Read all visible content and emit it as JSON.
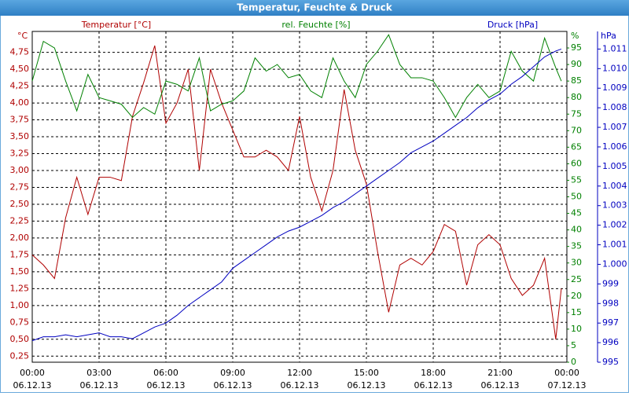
{
  "chart_data": {
    "type": "line",
    "title": "Temperatur, Feuchte & Druck",
    "y_label": "°C",
    "y2_label": "%",
    "y3_label": "hPa",
    "grid": true,
    "x": [
      0,
      0.5,
      1,
      1.5,
      2,
      2.5,
      3,
      3.5,
      4,
      4.5,
      5,
      5.5,
      6,
      6.5,
      7,
      7.5,
      8,
      8.5,
      9,
      9.5,
      10,
      10.5,
      11,
      11.5,
      12,
      12.5,
      13,
      13.5,
      14,
      14.5,
      15,
      15.5,
      16,
      16.5,
      17,
      17.5,
      18,
      18.5,
      19,
      19.5,
      20,
      20.5,
      21,
      21.5,
      22,
      22.5,
      23,
      23.5,
      23.75
    ],
    "xlim": [
      0,
      24
    ],
    "xticks": [
      {
        "value": 0,
        "label": "00:00"
      },
      {
        "value": 3,
        "label": "03:00"
      },
      {
        "value": 6,
        "label": "06:00"
      },
      {
        "value": 9,
        "label": "09:00"
      },
      {
        "value": 12,
        "label": "12:00"
      },
      {
        "value": 15,
        "label": "15:00"
      },
      {
        "value": 18,
        "label": "18:00"
      },
      {
        "value": 21,
        "label": "21:00"
      },
      {
        "value": 24,
        "label": "00:00"
      }
    ],
    "xtick_dates": [
      "06.12.13",
      "06.12.13",
      "06.12.13",
      "06.12.13",
      "06.12.13",
      "06.12.13",
      "06.12.13",
      "06.12.13",
      "07.12.13"
    ],
    "ylim": [
      0.16,
      5.06
    ],
    "yticks": [
      {
        "value": 0.25,
        "label": "0,25"
      },
      {
        "value": 0.5,
        "label": "0,50"
      },
      {
        "value": 0.75,
        "label": "0,75"
      },
      {
        "value": 1,
        "label": "1,00"
      },
      {
        "value": 1.25,
        "label": "1,25"
      },
      {
        "value": 1.5,
        "label": "1,50"
      },
      {
        "value": 1.75,
        "label": "1,75"
      },
      {
        "value": 2,
        "label": "2,00"
      },
      {
        "value": 2.25,
        "label": "2,25"
      },
      {
        "value": 2.5,
        "label": "2,50"
      },
      {
        "value": 2.75,
        "label": "2,75"
      },
      {
        "value": 3,
        "label": "3,00"
      },
      {
        "value": 3.25,
        "label": "3,25"
      },
      {
        "value": 3.5,
        "label": "3,50"
      },
      {
        "value": 3.75,
        "label": "3,75"
      },
      {
        "value": 4,
        "label": "4,00"
      },
      {
        "value": 4.25,
        "label": "4,25"
      },
      {
        "value": 4.5,
        "label": "4,50"
      },
      {
        "value": 4.75,
        "label": "4,75"
      }
    ],
    "y2lim": [
      0,
      100
    ],
    "y2ticks": [
      0,
      5,
      10,
      15,
      20,
      25,
      30,
      35,
      40,
      45,
      50,
      55,
      60,
      65,
      70,
      75,
      80,
      85,
      90,
      95
    ],
    "y3lim": [
      995,
      1011.9
    ],
    "y3ticks": [
      995,
      996,
      997,
      998,
      999,
      {
        "value": 1000,
        "label": "1.000"
      },
      {
        "value": 1001,
        "label": "1.001"
      },
      {
        "value": 1002,
        "label": "1.002"
      },
      {
        "value": 1003,
        "label": "1.003"
      },
      {
        "value": 1004,
        "label": "1.004"
      },
      {
        "value": 1005,
        "label": "1.005"
      },
      {
        "value": 1006,
        "label": "1.006"
      },
      {
        "value": 1007,
        "label": "1.007"
      },
      {
        "value": 1008,
        "label": "1.008"
      },
      {
        "value": 1009,
        "label": "1.009"
      },
      {
        "value": 1010,
        "label": "1.010"
      },
      {
        "value": 1011,
        "label": "1.011"
      }
    ],
    "series": [
      {
        "name": "Temperatur [°C]",
        "color": "#b00000",
        "axis": "y",
        "values": [
          1.75,
          1.6,
          1.4,
          2.3,
          2.9,
          2.35,
          2.9,
          2.9,
          2.85,
          3.8,
          4.3,
          4.85,
          3.7,
          4.0,
          4.5,
          3.0,
          4.5,
          4.0,
          3.6,
          3.2,
          3.2,
          3.3,
          3.2,
          3.0,
          3.8,
          2.9,
          2.4,
          3.0,
          4.2,
          3.3,
          2.8,
          1.8,
          0.9,
          1.6,
          1.7,
          1.6,
          1.8,
          2.2,
          2.1,
          1.3,
          1.9,
          2.05,
          1.9,
          1.4,
          1.15,
          1.3,
          1.7,
          0.5,
          1.25
        ]
      },
      {
        "name": "rel. Feuchte [%]",
        "color": "#008000",
        "axis": "y2",
        "values": [
          85,
          97,
          95,
          85,
          76,
          87,
          80,
          79,
          78,
          74,
          77,
          75,
          85,
          84,
          82,
          92,
          76,
          78,
          79,
          82,
          92,
          88,
          90,
          86,
          87,
          82,
          80,
          92,
          85,
          80,
          90,
          94,
          99,
          90,
          86,
          86,
          85,
          80,
          74,
          80,
          84,
          80,
          82,
          94,
          88,
          85,
          98,
          89,
          85
        ]
      },
      {
        "name": "Druck [hPa]",
        "color": "#0000c0",
        "axis": "y3",
        "values": [
          996.1,
          996.3,
          996.3,
          996.4,
          996.3,
          996.4,
          996.5,
          996.3,
          996.3,
          996.2,
          996.5,
          996.8,
          997.0,
          997.4,
          997.9,
          998.3,
          998.7,
          999.1,
          999.8,
          1000.2,
          1000.6,
          1001.0,
          1001.4,
          1001.7,
          1001.9,
          1002.2,
          1002.5,
          1002.9,
          1003.2,
          1003.6,
          1004.0,
          1004.4,
          1004.8,
          1005.2,
          1005.7,
          1006.0,
          1006.3,
          1006.7,
          1007.1,
          1007.5,
          1008.0,
          1008.4,
          1008.7,
          1009.2,
          1009.6,
          1010.1,
          1010.6,
          1010.9,
          1011.0
        ]
      }
    ]
  }
}
